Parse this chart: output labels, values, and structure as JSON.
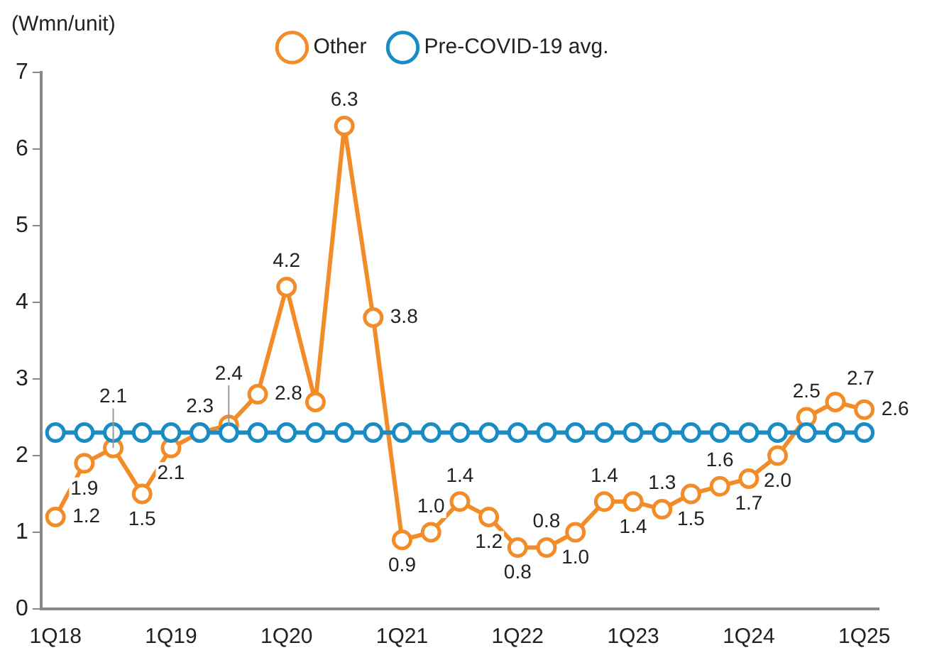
{
  "chart_data": {
    "type": "line",
    "ylabel": "(Wmn/unit)",
    "categories": [
      "1Q18",
      null,
      null,
      null,
      "1Q19",
      null,
      null,
      null,
      "1Q20",
      null,
      null,
      null,
      "1Q21",
      null,
      null,
      null,
      "1Q22",
      null,
      null,
      null,
      "1Q23",
      null,
      null,
      null,
      "1Q24",
      null,
      null,
      null,
      "1Q25"
    ],
    "series": [
      {
        "name": "Other",
        "color": "#f28c28",
        "values": [
          1.2,
          1.9,
          2.1,
          1.5,
          2.1,
          2.3,
          2.4,
          2.8,
          4.2,
          2.7,
          6.3,
          3.8,
          0.9,
          1.0,
          1.4,
          1.2,
          0.8,
          0.8,
          1.0,
          1.4,
          1.4,
          1.3,
          1.5,
          1.6,
          1.7,
          2.0,
          2.5,
          2.7,
          2.6
        ],
        "value_labels": [
          "1.2",
          "1.9",
          "2.1",
          "1.5",
          "2.1",
          "2.3",
          "2.4",
          "2.8",
          "4.2",
          null,
          "6.3",
          "3.8",
          "0.9",
          "1.0",
          "1.4",
          "1.2",
          "0.8",
          "0.8",
          "1.0",
          "1.4",
          "1.4",
          "1.3",
          "1.5",
          "1.6",
          "1.7",
          "2.0",
          "2.5",
          "2.7",
          "2.6"
        ]
      },
      {
        "name": "Pre-COVID-19 avg.",
        "color": "#1a8cc4",
        "values": [
          2.3,
          2.3,
          2.3,
          2.3,
          2.3,
          2.3,
          2.3,
          2.3,
          2.3,
          2.3,
          2.3,
          2.3,
          2.3,
          2.3,
          2.3,
          2.3,
          2.3,
          2.3,
          2.3,
          2.3,
          2.3,
          2.3,
          2.3,
          2.3,
          2.3,
          2.3,
          2.3,
          2.3,
          2.3
        ]
      }
    ],
    "ylim": [
      0,
      7
    ],
    "yticks": [
      0,
      1,
      2,
      3,
      4,
      5,
      6,
      7
    ],
    "grid": false,
    "legend": "top",
    "marker": "circle",
    "line_style": "solid"
  }
}
